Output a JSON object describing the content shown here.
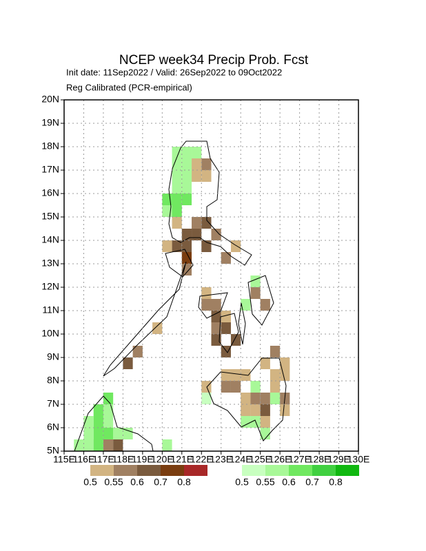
{
  "chart_data": {
    "type": "gridmap",
    "title": "NCEP week34 Precip Prob. Fcst",
    "subtitle": "Init date: 11Sep2022 / Valid: 26Sep2022 to 09Oct2022",
    "note": "Reg Calibrated (PCR-empirical)",
    "xlim": [
      115,
      130
    ],
    "ylim": [
      5,
      20
    ],
    "cell_size": 0.5,
    "grid": true,
    "xticks": [
      {
        "value": 115,
        "label": "115E"
      },
      {
        "value": 116,
        "label": "116E"
      },
      {
        "value": 117,
        "label": "117E"
      },
      {
        "value": 118,
        "label": "118E"
      },
      {
        "value": 119,
        "label": "119E"
      },
      {
        "value": 120,
        "label": "120E"
      },
      {
        "value": 121,
        "label": "121E"
      },
      {
        "value": 122,
        "label": "122E"
      },
      {
        "value": 123,
        "label": "123E"
      },
      {
        "value": 124,
        "label": "124E"
      },
      {
        "value": 125,
        "label": "125E"
      },
      {
        "value": 126,
        "label": "126E"
      },
      {
        "value": 127,
        "label": "127E"
      },
      {
        "value": 128,
        "label": "128E"
      },
      {
        "value": 129,
        "label": "129E"
      },
      {
        "value": 130,
        "label": "130E"
      }
    ],
    "yticks": [
      {
        "value": 5,
        "label": "5N"
      },
      {
        "value": 6,
        "label": "6N"
      },
      {
        "value": 7,
        "label": "7N"
      },
      {
        "value": 8,
        "label": "8N"
      },
      {
        "value": 9,
        "label": "9N"
      },
      {
        "value": 10,
        "label": "10N"
      },
      {
        "value": 11,
        "label": "11N"
      },
      {
        "value": 12,
        "label": "12N"
      },
      {
        "value": 13,
        "label": "13N"
      },
      {
        "value": 14,
        "label": "14N"
      },
      {
        "value": 15,
        "label": "15N"
      },
      {
        "value": 16,
        "label": "16N"
      },
      {
        "value": 17,
        "label": "17N"
      },
      {
        "value": 18,
        "label": "18N"
      },
      {
        "value": 19,
        "label": "19N"
      },
      {
        "value": 20,
        "label": "20N"
      }
    ],
    "dry_legend": {
      "values": [
        0.5,
        0.55,
        0.6,
        0.7,
        0.8
      ],
      "colors": [
        "#d2b482",
        "#a08062",
        "#7a5b3e",
        "#7a3d10",
        "#a82828"
      ]
    },
    "wet_legend": {
      "values": [
        0.5,
        0.55,
        0.6,
        0.7,
        0.8
      ],
      "colors": [
        "#c8ffc0",
        "#a8f898",
        "#70e860",
        "#40d040",
        "#10b810"
      ]
    },
    "dry_cells": [
      [
        121.5,
        16.5,
        0.5
      ],
      [
        122,
        16.5,
        0.5
      ],
      [
        122,
        17,
        0.55
      ],
      [
        121.5,
        17,
        0.5
      ],
      [
        120.5,
        14.5,
        0.5
      ],
      [
        121.5,
        14.5,
        0.55
      ],
      [
        122,
        14.5,
        0.6
      ],
      [
        120.5,
        13.5,
        0.6
      ],
      [
        121,
        13.5,
        0.6
      ],
      [
        121,
        14,
        0.6
      ],
      [
        121.5,
        14,
        0.6
      ],
      [
        121,
        13,
        0.7
      ],
      [
        120,
        13.5,
        0.5
      ],
      [
        121,
        12.5,
        0.55
      ],
      [
        122,
        13.5,
        0.6
      ],
      [
        122.5,
        14,
        0.55
      ],
      [
        123,
        13,
        0.55
      ],
      [
        123.5,
        13.5,
        0.5
      ],
      [
        122,
        11,
        0.55
      ],
      [
        122,
        11.5,
        0.5
      ],
      [
        122.5,
        10.5,
        0.6
      ],
      [
        122.5,
        11,
        0.55
      ],
      [
        123,
        10,
        0.6
      ],
      [
        122.5,
        9.5,
        0.6
      ],
      [
        123,
        9,
        0.6
      ],
      [
        123.5,
        9.5,
        0.6
      ],
      [
        122.5,
        10,
        0.55
      ],
      [
        123,
        10.5,
        0.5
      ],
      [
        124.5,
        11.5,
        0.55
      ],
      [
        125,
        11,
        0.55
      ],
      [
        118.5,
        9,
        0.55
      ],
      [
        118,
        8.5,
        0.6
      ],
      [
        119.5,
        10,
        0.5
      ],
      [
        123,
        8,
        0.5
      ],
      [
        123.5,
        8,
        0.5
      ],
      [
        124,
        8,
        0.5
      ],
      [
        123,
        7.5,
        0.55
      ],
      [
        123.5,
        7.5,
        0.55
      ],
      [
        122,
        7.5,
        0.5
      ],
      [
        124,
        7,
        0.5
      ],
      [
        124.5,
        7,
        0.55
      ],
      [
        125,
        7,
        0.55
      ],
      [
        124.5,
        6.5,
        0.5
      ],
      [
        125,
        6.5,
        0.6
      ],
      [
        124,
        6.5,
        0.5
      ],
      [
        125.5,
        7.5,
        0.5
      ],
      [
        125.5,
        8,
        0.5
      ],
      [
        126,
        8,
        0.5
      ],
      [
        126,
        7,
        0.55
      ],
      [
        126,
        6.5,
        0.5
      ],
      [
        125,
        8.5,
        0.5
      ],
      [
        125.5,
        9,
        0.55
      ],
      [
        126,
        8.5,
        0.5
      ],
      [
        125,
        6,
        0.5
      ],
      [
        117,
        5,
        0.55
      ],
      [
        117.5,
        5,
        0.6
      ]
    ],
    "wet_cells": [
      [
        120.5,
        17.5,
        0.55
      ],
      [
        121,
        17.5,
        0.55
      ],
      [
        121.5,
        17.5,
        0.55
      ],
      [
        120.5,
        17,
        0.55
      ],
      [
        121,
        17,
        0.55
      ],
      [
        120.5,
        16.5,
        0.55
      ],
      [
        121,
        16.5,
        0.55
      ],
      [
        120.5,
        16,
        0.55
      ],
      [
        121,
        16,
        0.55
      ],
      [
        120,
        15,
        0.55
      ],
      [
        120.5,
        15,
        0.6
      ],
      [
        120,
        15.5,
        0.6
      ],
      [
        120.5,
        15.5,
        0.6
      ],
      [
        121,
        15.5,
        0.6
      ],
      [
        124.5,
        12,
        0.55
      ],
      [
        124,
        11,
        0.55
      ],
      [
        124.5,
        6,
        0.55
      ],
      [
        124,
        6,
        0.55
      ],
      [
        125,
        5.5,
        0.55
      ],
      [
        124.5,
        7.5,
        0.55
      ],
      [
        125.5,
        7,
        0.55
      ],
      [
        122,
        7,
        0.5
      ],
      [
        116.5,
        6.5,
        0.6
      ],
      [
        116.5,
        6,
        0.6
      ],
      [
        116.5,
        5.5,
        0.6
      ],
      [
        117,
        7,
        0.6
      ],
      [
        117,
        6.5,
        0.55
      ],
      [
        116,
        6,
        0.55
      ],
      [
        116,
        5.5,
        0.55
      ],
      [
        115.5,
        5,
        0.55
      ],
      [
        117,
        6,
        0.55
      ],
      [
        117.5,
        5.5,
        0.55
      ],
      [
        118,
        5.5,
        0.55
      ],
      [
        117,
        5.5,
        0.6
      ],
      [
        116,
        5,
        0.55
      ],
      [
        116.5,
        5,
        0.6
      ],
      [
        120,
        5,
        0.55
      ]
    ]
  }
}
